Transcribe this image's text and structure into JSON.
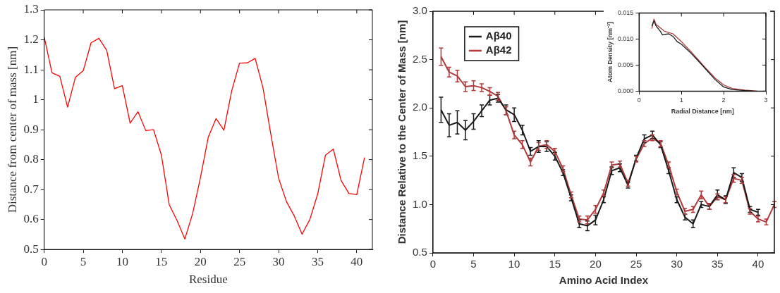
{
  "chart_data": [
    {
      "type": "line",
      "xlabel": "Residue",
      "ylabel": "Distance from center of mass [nm]",
      "xlim": [
        0,
        42
      ],
      "xticks": [
        0,
        5,
        10,
        15,
        20,
        25,
        30,
        35,
        40
      ],
      "ylim": [
        0.5,
        1.3
      ],
      "yticks": [
        0.5,
        0.6,
        0.7,
        0.8,
        0.9,
        1,
        1.1,
        1.2,
        1.3
      ],
      "grid": false,
      "legend": false,
      "marker": "none",
      "x": [
        0,
        1,
        2,
        3,
        4,
        5,
        6,
        7,
        8,
        9,
        10,
        11,
        12,
        13,
        14,
        15,
        16,
        17,
        18,
        19,
        20,
        21,
        22,
        23,
        24,
        25,
        26,
        27,
        28,
        29,
        30,
        31,
        32,
        33,
        34,
        35,
        36,
        37,
        38,
        39,
        40,
        41
      ],
      "series": [
        {
          "color": "#ff0000",
          "values": [
            1.21,
            1.09,
            1.078,
            0.975,
            1.075,
            1.097,
            1.19,
            1.205,
            1.165,
            1.037,
            1.047,
            0.922,
            0.96,
            0.897,
            0.9,
            0.815,
            0.65,
            0.597,
            0.535,
            0.62,
            0.74,
            0.875,
            0.937,
            0.898,
            1.03,
            1.122,
            1.123,
            1.138,
            1.04,
            0.885,
            0.738,
            0.66,
            0.612,
            0.551,
            0.6,
            0.685,
            0.815,
            0.835,
            0.73,
            0.687,
            0.683,
            0.807
          ]
        }
      ]
    },
    {
      "type": "line",
      "xlabel": "Amino Acid Index",
      "ylabel": "Distance Relative to the Center of Mass [nm]",
      "xlim": [
        0,
        42
      ],
      "xticks": [
        0,
        5,
        10,
        15,
        20,
        25,
        30,
        35,
        40
      ],
      "ylim": [
        0.5,
        3.0
      ],
      "yticks": [
        {
          "value": 0.5,
          "label": "0.5"
        },
        {
          "value": 1,
          "label": "1.0"
        },
        {
          "value": 1.5,
          "label": "1.5"
        },
        {
          "value": 2,
          "label": "2.0"
        },
        {
          "value": 2.5,
          "label": "2.5"
        },
        {
          "value": 3,
          "label": "3.0"
        }
      ],
      "grid": false,
      "legend": "top left",
      "series": [
        {
          "name": "Aβ40",
          "color": "#1a1a1a",
          "x": [
            1,
            2,
            3,
            4,
            5,
            6,
            7,
            8,
            9,
            10,
            11,
            12,
            13,
            14,
            15,
            16,
            17,
            18,
            19,
            20,
            21,
            22,
            23,
            24,
            25,
            26,
            27,
            28,
            29,
            30,
            31,
            32,
            33,
            34,
            35,
            36,
            37,
            38,
            39,
            40
          ],
          "values": [
            1.98,
            1.82,
            1.85,
            1.77,
            1.86,
            1.97,
            2.08,
            2.1,
            1.98,
            1.93,
            1.77,
            1.55,
            1.6,
            1.6,
            1.5,
            1.33,
            1.07,
            0.8,
            0.78,
            0.84,
            1.05,
            1.35,
            1.38,
            1.2,
            1.48,
            1.68,
            1.72,
            1.62,
            1.35,
            1.05,
            0.87,
            0.8,
            1.0,
            0.98,
            1.1,
            1.05,
            1.33,
            1.28,
            0.95,
            0.92
          ],
          "errors": [
            0.13,
            0.12,
            0.12,
            0.1,
            0.08,
            0.06,
            0.05,
            0.04,
            0.05,
            0.07,
            0.05,
            0.04,
            0.06,
            0.05,
            0.04,
            0.03,
            0.03,
            0.04,
            0.05,
            0.05,
            0.03,
            0.04,
            0.04,
            0.03,
            0.03,
            0.04,
            0.04,
            0.03,
            0.03,
            0.03,
            0.03,
            0.04,
            0.03,
            0.03,
            0.05,
            0.04,
            0.05,
            0.04,
            0.03,
            0.03
          ]
        },
        {
          "name": "Aβ42",
          "color": "#b03a3a",
          "x": [
            1,
            2,
            3,
            4,
            5,
            6,
            7,
            8,
            9,
            10,
            11,
            12,
            13,
            14,
            15,
            16,
            17,
            18,
            19,
            20,
            21,
            22,
            23,
            24,
            25,
            26,
            27,
            28,
            29,
            30,
            31,
            32,
            33,
            34,
            35,
            36,
            37,
            38,
            39,
            40,
            41,
            42
          ],
          "values": [
            2.53,
            2.37,
            2.33,
            2.22,
            2.23,
            2.21,
            2.17,
            2.12,
            1.97,
            1.72,
            1.62,
            1.44,
            1.6,
            1.62,
            1.55,
            1.37,
            1.1,
            0.85,
            0.84,
            0.95,
            1.12,
            1.41,
            1.42,
            1.22,
            1.47,
            1.63,
            1.69,
            1.63,
            1.41,
            1.13,
            0.93,
            0.95,
            1.1,
            0.98,
            1.08,
            1.05,
            1.27,
            1.25,
            0.93,
            0.85,
            0.82,
            1.0
          ],
          "errors": [
            0.09,
            0.05,
            0.06,
            0.05,
            0.05,
            0.04,
            0.04,
            0.04,
            0.04,
            0.04,
            0.04,
            0.04,
            0.04,
            0.04,
            0.03,
            0.03,
            0.03,
            0.03,
            0.04,
            0.04,
            0.03,
            0.03,
            0.03,
            0.03,
            0.03,
            0.03,
            0.03,
            0.03,
            0.03,
            0.03,
            0.03,
            0.03,
            0.04,
            0.03,
            0.03,
            0.03,
            0.04,
            0.03,
            0.03,
            0.03,
            0.03,
            0.03
          ]
        }
      ]
    },
    {
      "type": "line",
      "xlabel": "Radial Distance [nm]",
      "ylabel": "Atom Density [nm⁻³]",
      "xlim": [
        0,
        3
      ],
      "xticks": [
        0,
        1,
        2,
        3
      ],
      "ylim": [
        0,
        0.015
      ],
      "yticks": [
        {
          "value": 0,
          "label": "0.000"
        },
        {
          "value": 0.005,
          "label": "0.005"
        },
        {
          "value": 0.01,
          "label": "0.010"
        },
        {
          "value": 0.015,
          "label": "0.015"
        }
      ],
      "grid": false,
      "legend": false,
      "marker": "none",
      "series": [
        {
          "color": "#1a1a1a",
          "x": [
            0.3,
            0.35,
            0.4,
            0.5,
            0.55,
            0.7,
            0.8,
            0.9,
            1.0,
            1.2,
            1.4,
            1.6,
            1.8,
            2.0,
            2.2,
            2.5,
            2.7
          ],
          "values": [
            0.0125,
            0.0135,
            0.0125,
            0.0115,
            0.0108,
            0.011,
            0.0105,
            0.0095,
            0.009,
            0.0075,
            0.0058,
            0.004,
            0.0022,
            0.0008,
            0.0003,
            0.0001,
            0
          ]
        },
        {
          "color": "#b03a3a",
          "x": [
            0.3,
            0.35,
            0.4,
            0.6,
            0.8,
            1.0,
            1.2,
            1.4,
            1.6,
            1.8,
            2.0,
            2.2,
            2.5,
            2.8
          ],
          "values": [
            0.012,
            0.0138,
            0.0128,
            0.0115,
            0.011,
            0.0095,
            0.0078,
            0.006,
            0.0042,
            0.0025,
            0.0012,
            0.0005,
            0.0002,
            0
          ]
        }
      ]
    }
  ]
}
